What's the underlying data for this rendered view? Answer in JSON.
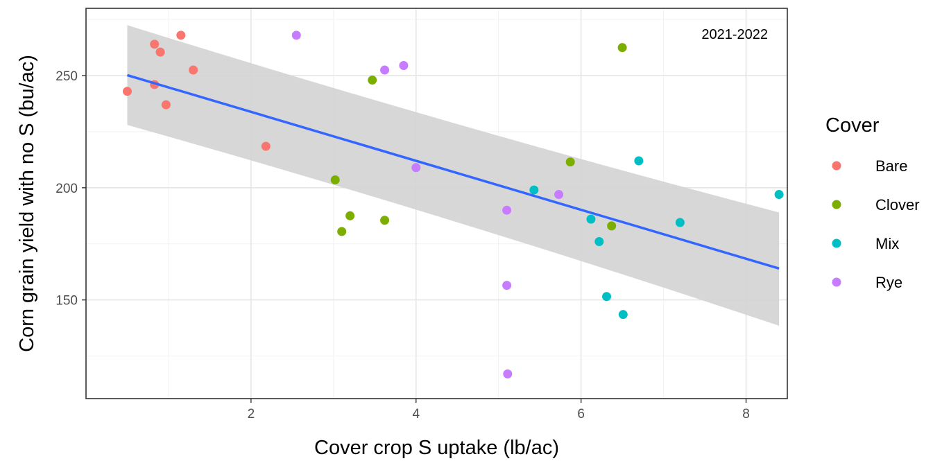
{
  "chart_data": {
    "type": "scatter",
    "xlabel": "Cover crop S uptake (lb/ac)",
    "ylabel": "Corn grain yield with no S (bu/ac)",
    "annotation": "2021-2022",
    "xlim": [
      0.0,
      8.5
    ],
    "ylim": [
      106,
      280
    ],
    "x_ticks": [
      2,
      4,
      6,
      8
    ],
    "y_ticks": [
      150,
      200,
      250
    ],
    "grid": true,
    "legend": {
      "title": "Cover",
      "position": "right"
    },
    "series": [
      {
        "name": "Bare",
        "color": "#f8766d",
        "points": [
          [
            0.5,
            243
          ],
          [
            0.83,
            264
          ],
          [
            0.9,
            260.5
          ],
          [
            1.15,
            268
          ],
          [
            0.83,
            246
          ],
          [
            0.97,
            237
          ],
          [
            1.3,
            252.5
          ],
          [
            2.18,
            218.5
          ]
        ]
      },
      {
        "name": "Clover",
        "color": "#7cae00",
        "points": [
          [
            3.47,
            248
          ],
          [
            6.5,
            262.5
          ],
          [
            5.87,
            211.5
          ],
          [
            3.02,
            203.5
          ],
          [
            3.2,
            187.5
          ],
          [
            3.1,
            180.5
          ],
          [
            3.62,
            185.5
          ],
          [
            6.37,
            183
          ]
        ]
      },
      {
        "name": "Mix",
        "color": "#00bfc4",
        "points": [
          [
            6.7,
            212
          ],
          [
            8.4,
            197
          ],
          [
            5.43,
            199
          ],
          [
            6.12,
            186
          ],
          [
            7.2,
            184.5
          ],
          [
            6.22,
            176
          ],
          [
            6.31,
            151.5
          ],
          [
            6.51,
            143.5
          ]
        ]
      },
      {
        "name": "Rye",
        "color": "#c77cff",
        "points": [
          [
            2.55,
            268
          ],
          [
            3.62,
            252.5
          ],
          [
            3.85,
            254.5
          ],
          [
            4.0,
            209
          ],
          [
            5.73,
            197
          ],
          [
            5.1,
            190
          ],
          [
            5.1,
            156.5
          ],
          [
            5.11,
            117
          ]
        ]
      }
    ],
    "regression": {
      "color": "#3366ff",
      "band_color": "#d3d3d3",
      "x": [
        0.5,
        8.4
      ],
      "y": [
        250.2,
        164
      ],
      "band_upper": [
        272.5,
        189
      ],
      "band_lower": [
        228,
        138.5
      ]
    }
  }
}
